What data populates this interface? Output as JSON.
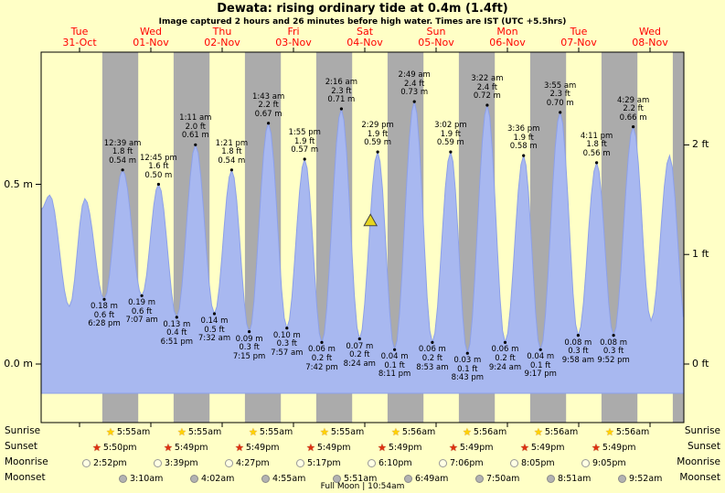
{
  "header": {
    "title": "Dewata: rising  ordinary tide at 0.4m (1.4ft)",
    "subtitle": "Image captured 2 hours and 26 minutes before high water. Times are IST (UTC +5.5hrs)"
  },
  "days": [
    {
      "name": "Tue",
      "date": "31-Oct"
    },
    {
      "name": "Wed",
      "date": "01-Nov"
    },
    {
      "name": "Thu",
      "date": "02-Nov"
    },
    {
      "name": "Fri",
      "date": "03-Nov"
    },
    {
      "name": "Sat",
      "date": "04-Nov"
    },
    {
      "name": "Sun",
      "date": "05-Nov"
    },
    {
      "name": "Mon",
      "date": "06-Nov"
    },
    {
      "name": "Tue",
      "date": "07-Nov"
    },
    {
      "name": "Wed",
      "date": "08-Nov"
    }
  ],
  "chart_data": {
    "type": "area",
    "title": "Dewata tide height over 9 days",
    "ylabel_left": "m",
    "ylabel_right": "ft",
    "ylim_m": [
      -0.08,
      1.03
    ],
    "y_axis": {
      "left": [
        {
          "text": "0.5 m",
          "value_m": 0.5
        },
        {
          "text": "0.0 m",
          "value_m": 0.0
        }
      ],
      "right": [
        {
          "text": "2 ft",
          "value_m": 0.6096
        },
        {
          "text": "1 ft",
          "value_m": 0.3048
        },
        {
          "text": "0 ft",
          "value_m": 0.0
        }
      ]
    },
    "night_bands": {
      "sunset": "5:49 pm",
      "sunrise": "5:55 am"
    },
    "highs": [
      {
        "day": 1,
        "time": "12:39 am",
        "ft": "1.8 ft",
        "m": "0.54 m",
        "value_m": 0.54
      },
      {
        "day": 1,
        "time": "12:45 pm",
        "ft": "1.6 ft",
        "m": "0.50 m",
        "value_m": 0.5
      },
      {
        "day": 2,
        "time": "1:11 am",
        "ft": "2.0 ft",
        "m": "0.61 m",
        "value_m": 0.61
      },
      {
        "day": 2,
        "time": "1:21 pm",
        "ft": "1.8 ft",
        "m": "0.54 m",
        "value_m": 0.54
      },
      {
        "day": 3,
        "time": "1:43 am",
        "ft": "2.2 ft",
        "m": "0.67 m",
        "value_m": 0.67
      },
      {
        "day": 3,
        "time": "1:55 pm",
        "ft": "1.9 ft",
        "m": "0.57 m",
        "value_m": 0.57
      },
      {
        "day": 4,
        "time": "2:16 am",
        "ft": "2.3 ft",
        "m": "0.71 m",
        "value_m": 0.71
      },
      {
        "day": 4,
        "time": "2:29 pm",
        "ft": "1.9 ft",
        "m": "0.59 m",
        "value_m": 0.59
      },
      {
        "day": 5,
        "time": "2:49 am",
        "ft": "2.4 ft",
        "m": "0.73 m",
        "value_m": 0.73
      },
      {
        "day": 5,
        "time": "3:02 pm",
        "ft": "1.9 ft",
        "m": "0.59 m",
        "value_m": 0.59
      },
      {
        "day": 6,
        "time": "3:22 am",
        "ft": "2.4 ft",
        "m": "0.72 m",
        "value_m": 0.72
      },
      {
        "day": 6,
        "time": "3:36 pm",
        "ft": "1.9 ft",
        "m": "0.58 m",
        "value_m": 0.58
      },
      {
        "day": 7,
        "time": "3:55 am",
        "ft": "2.3 ft",
        "m": "0.70 m",
        "value_m": 0.7
      },
      {
        "day": 7,
        "time": "4:11 pm",
        "ft": "1.8 ft",
        "m": "0.56 m",
        "value_m": 0.56
      },
      {
        "day": 8,
        "time": "4:29 am",
        "ft": "2.2 ft",
        "m": "0.66 m",
        "value_m": 0.66
      }
    ],
    "lows": [
      {
        "day": 0,
        "time": "6:28 pm",
        "m": "0.18 m",
        "ft": "0.6 ft",
        "value_m": 0.18
      },
      {
        "day": 1,
        "time": "7:07 am",
        "m": "0.19 m",
        "ft": "0.6 ft",
        "value_m": 0.19
      },
      {
        "day": 1,
        "time": "6:51 pm",
        "m": "0.13 m",
        "ft": "0.4 ft",
        "value_m": 0.13
      },
      {
        "day": 2,
        "time": "7:32 am",
        "m": "0.14 m",
        "ft": "0.5 ft",
        "value_m": 0.14
      },
      {
        "day": 2,
        "time": "7:15 pm",
        "m": "0.09 m",
        "ft": "0.3 ft",
        "value_m": 0.09
      },
      {
        "day": 3,
        "time": "7:57 am",
        "m": "0.10 m",
        "ft": "0.3 ft",
        "value_m": 0.1
      },
      {
        "day": 3,
        "time": "7:42 pm",
        "m": "0.06 m",
        "ft": "0.2 ft",
        "value_m": 0.06
      },
      {
        "day": 4,
        "time": "8:24 am",
        "m": "0.07 m",
        "ft": "0.2 ft",
        "value_m": 0.07
      },
      {
        "day": 4,
        "time": "8:11 pm",
        "m": "0.04 m",
        "ft": "0.1 ft",
        "value_m": 0.04
      },
      {
        "day": 5,
        "time": "8:53 am",
        "m": "0.06 m",
        "ft": "0.2 ft",
        "value_m": 0.06
      },
      {
        "day": 5,
        "time": "8:43 pm",
        "m": "0.03 m",
        "ft": "0.1 ft",
        "value_m": 0.03
      },
      {
        "day": 6,
        "time": "9:24 am",
        "m": "0.06 m",
        "ft": "0.2 ft",
        "value_m": 0.06
      },
      {
        "day": 6,
        "time": "9:17 pm",
        "m": "0.04 m",
        "ft": "0.1 ft",
        "value_m": 0.04
      },
      {
        "day": 7,
        "time": "9:58 am",
        "m": "0.08 m",
        "ft": "0.3 ft",
        "value_m": 0.08
      },
      {
        "day": 7,
        "time": "9:52 pm",
        "m": "0.08 m",
        "ft": "0.3 ft",
        "value_m": 0.08
      }
    ],
    "edge_points": [
      {
        "day": 0,
        "time": "12:05 am",
        "value_m": 0.47
      },
      {
        "day": 0,
        "time": "6:45 am",
        "value_m": 0.16
      },
      {
        "day": 0,
        "time": "11:57 am",
        "value_m": 0.46
      },
      {
        "day": 8,
        "time": "10:30 am",
        "value_m": 0.12
      },
      {
        "day": 8,
        "time": "4:45 pm",
        "value_m": 0.58
      },
      {
        "day": 8,
        "time": "10:15 pm",
        "value_m": 0.1
      }
    ],
    "current_marker": {
      "day": 4,
      "time": "12:03 pm",
      "value_m": 0.4,
      "shape": "triangle",
      "color": "#e6d51f"
    }
  },
  "astro": {
    "sunrise": {
      "label": "Sunrise",
      "times": [
        "5:55am",
        "5:55am",
        "5:55am",
        "5:55am",
        "5:56am",
        "5:56am",
        "5:56am",
        "5:56am"
      ]
    },
    "sunset": {
      "label": "Sunset",
      "times": [
        "5:50pm",
        "5:49pm",
        "5:49pm",
        "5:49pm",
        "5:49pm",
        "5:49pm",
        "5:49pm",
        "5:49pm"
      ]
    },
    "moonrise": {
      "label": "Moonrise",
      "times": [
        "2:52pm",
        "3:39pm",
        "4:27pm",
        "5:17pm",
        "6:10pm",
        "7:06pm",
        "8:05pm",
        "9:05pm"
      ]
    },
    "moonset": {
      "label": "Moonset",
      "times": [
        "3:10am",
        "4:02am",
        "4:55am",
        "5:51am",
        "6:49am",
        "7:50am",
        "8:51am",
        "9:52am"
      ]
    },
    "full_moon": "Full Moon | 10:54am"
  },
  "colors": {
    "background": "#ffffc6",
    "night_band": "#ababab",
    "tide_fill": "#a8b8f0",
    "tide_stroke": "#8da0e8",
    "day_label": "#ff0000",
    "marker_fill": "#e6d51f",
    "sunrise_star": "#ffd400",
    "sunset_star": "#e03010"
  }
}
